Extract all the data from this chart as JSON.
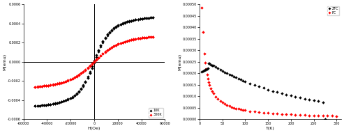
{
  "left": {
    "xlabel": "H(Oe)",
    "ylabel": "M(emu)",
    "xlim": [
      -60000,
      60000
    ],
    "ylim": [
      -0.0006,
      0.0006
    ],
    "xticks": [
      -60000,
      -40000,
      -20000,
      0,
      20000,
      40000,
      60000
    ],
    "yticks": [
      -0.0006,
      -0.0004,
      -0.0002,
      0.0,
      0.0002,
      0.0004,
      0.0006
    ],
    "legend": [
      "10K",
      "300K"
    ],
    "10K_color": "black",
    "300K_color": "red",
    "marker": "D",
    "markersize": 2.0
  },
  "right": {
    "xlabel": "T(K)",
    "ylabel": "M(emu)",
    "xlim": [
      0,
      310
    ],
    "ylim": [
      0.0,
      0.0005
    ],
    "xticks": [
      0,
      50,
      100,
      150,
      200,
      250,
      300
    ],
    "yticks": [
      0.0,
      5e-05,
      0.0001,
      0.00015,
      0.0002,
      0.00025,
      0.0003,
      0.00035,
      0.0004,
      0.00045,
      0.0005
    ],
    "legend": [
      "ZFC",
      "FC"
    ],
    "ZFC_color": "black",
    "FC_color": "red",
    "marker": "D",
    "markersize": 2.0
  }
}
